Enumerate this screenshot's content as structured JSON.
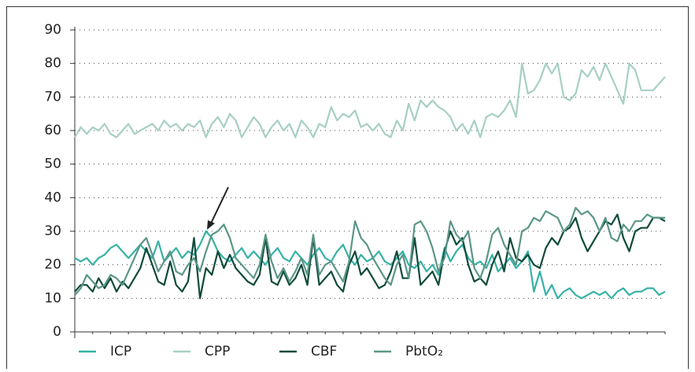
{
  "chart_data": {
    "type": "line",
    "categories": [
      null,
      null,
      null,
      null,
      null,
      null,
      null,
      null,
      null,
      null,
      null,
      null,
      null,
      null,
      null,
      null,
      null,
      null,
      null,
      null,
      null,
      null,
      null,
      null,
      null,
      null,
      null,
      null,
      null,
      null,
      null,
      null,
      null,
      null,
      null,
      null,
      null,
      null,
      null,
      null,
      null,
      null,
      null,
      null,
      null,
      null,
      null,
      null,
      null,
      null,
      null,
      null,
      null,
      null,
      null,
      null,
      null,
      null,
      null,
      null,
      null,
      null,
      null,
      null,
      null,
      null,
      null,
      null,
      null,
      null,
      null,
      null,
      null,
      null,
      null,
      null,
      null,
      null,
      null,
      null,
      null,
      null,
      null,
      null,
      null,
      null,
      null,
      null,
      null,
      null,
      null,
      null,
      null,
      null,
      null,
      null,
      null,
      null,
      null,
      null
    ],
    "ylim": [
      0,
      90
    ],
    "yticks": [
      0,
      10,
      20,
      30,
      40,
      50,
      60,
      70,
      80,
      90
    ],
    "grid": true,
    "legend": "bottom",
    "series": [
      {
        "name": "ICP",
        "color": "#36b2a6",
        "values": [
          22,
          21,
          22,
          20,
          22,
          23,
          25,
          26,
          24,
          22,
          24,
          26,
          24,
          22,
          27,
          21,
          23,
          25,
          22,
          24,
          23,
          26,
          30,
          28,
          24,
          22,
          21,
          23,
          25,
          22,
          24,
          22,
          20,
          23,
          25,
          22,
          21,
          24,
          22,
          20,
          23,
          25,
          22,
          21,
          24,
          26,
          22,
          20,
          23,
          21,
          22,
          24,
          21,
          20,
          22,
          24,
          20,
          19,
          21,
          18,
          20,
          17,
          25,
          21,
          24,
          26,
          22,
          20,
          21,
          19,
          23,
          18,
          20,
          22,
          19,
          21,
          24,
          12,
          18,
          11,
          14,
          10,
          12,
          13,
          11,
          10,
          11,
          12,
          11,
          12,
          10,
          12,
          13,
          11,
          12,
          12,
          13,
          13,
          11,
          12
        ]
      },
      {
        "name": "CPP",
        "color": "#a7cfc5",
        "values": [
          58,
          61,
          59,
          61,
          60,
          62,
          59,
          58,
          60,
          62,
          59,
          60,
          61,
          62,
          60,
          63,
          61,
          62,
          60,
          62,
          61,
          63,
          58,
          62,
          64,
          61,
          65,
          63,
          58,
          61,
          64,
          62,
          58,
          61,
          63,
          60,
          62,
          58,
          63,
          61,
          58,
          62,
          61,
          67,
          63,
          65,
          64,
          66,
          61,
          62,
          60,
          62,
          59,
          58,
          63,
          60,
          68,
          63,
          69,
          67,
          69,
          67,
          66,
          64,
          60,
          62,
          59,
          63,
          58,
          64,
          65,
          64,
          66,
          69,
          64,
          80,
          71,
          72,
          75,
          80,
          77,
          80,
          70,
          69,
          71,
          78,
          76,
          79,
          75,
          80,
          76,
          72,
          68,
          80,
          78,
          72,
          72,
          72,
          74,
          76
        ]
      },
      {
        "name": "CBF",
        "color": "#0f4a3a",
        "values": [
          12,
          14,
          14,
          12,
          16,
          13,
          16,
          12,
          15,
          13,
          16,
          19,
          25,
          20,
          15,
          14,
          21,
          14,
          12,
          15,
          28,
          10,
          19,
          17,
          24,
          19,
          23,
          19,
          17,
          15,
          14,
          17,
          28,
          15,
          14,
          18,
          14,
          16,
          20,
          14,
          28,
          14,
          16,
          18,
          14,
          12,
          20,
          24,
          17,
          19,
          16,
          13,
          14,
          18,
          24,
          16,
          16,
          28,
          14,
          16,
          18,
          14,
          24,
          30,
          26,
          28,
          20,
          15,
          16,
          14,
          20,
          24,
          18,
          28,
          22,
          21,
          23,
          20,
          19,
          25,
          28,
          26,
          30,
          31,
          34,
          28,
          24,
          27,
          30,
          33,
          32,
          35,
          28,
          24,
          30,
          31,
          31,
          34,
          34,
          33
        ]
      },
      {
        "name": "PbtO₂",
        "color": "#5b9688",
        "values": [
          11,
          13,
          17,
          15,
          13,
          14,
          17,
          16,
          14,
          18,
          22,
          26,
          28,
          23,
          18,
          21,
          24,
          18,
          17,
          20,
          22,
          18,
          24,
          29,
          30,
          32,
          28,
          22,
          20,
          18,
          16,
          20,
          29,
          21,
          16,
          19,
          15,
          18,
          22,
          17,
          29,
          17,
          20,
          21,
          18,
          15,
          21,
          33,
          28,
          26,
          22,
          19,
          16,
          14,
          20,
          23,
          16,
          32,
          33,
          30,
          25,
          18,
          22,
          33,
          29,
          27,
          30,
          19,
          16,
          21,
          29,
          31,
          26,
          23,
          20,
          30,
          31,
          34,
          33,
          36,
          35,
          34,
          30,
          32,
          37,
          35,
          36,
          34,
          30,
          34,
          28,
          27,
          32,
          30,
          33,
          33,
          35,
          34,
          34,
          34
        ]
      }
    ]
  }
}
